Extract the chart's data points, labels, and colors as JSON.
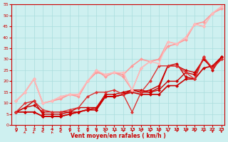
{
  "background_color": "#cef0f0",
  "grid_color": "#aadddd",
  "xlabel": "Vent moyen/en rafales ( km/h )",
  "xlim": [
    0,
    23
  ],
  "ylim": [
    0,
    55
  ],
  "yticks": [
    0,
    5,
    10,
    15,
    20,
    25,
    30,
    35,
    40,
    45,
    50,
    55
  ],
  "xticks": [
    0,
    1,
    2,
    3,
    4,
    5,
    6,
    7,
    8,
    9,
    10,
    11,
    12,
    13,
    14,
    15,
    16,
    17,
    18,
    19,
    20,
    21,
    22,
    23
  ],
  "series": [
    {
      "x": [
        0,
        1,
        2,
        3,
        4,
        5,
        6,
        7,
        8,
        9,
        10,
        11,
        12,
        13,
        14,
        15,
        16,
        17,
        18,
        19,
        20,
        21,
        22,
        23
      ],
      "y": [
        6,
        6,
        6,
        4,
        4,
        4,
        5,
        6,
        7,
        7,
        13,
        13,
        14,
        15,
        14,
        14,
        14,
        18,
        18,
        21,
        21,
        26,
        27,
        31
      ],
      "color": "#cc0000",
      "lw": 1.2,
      "marker": "D",
      "ms": 2.5
    },
    {
      "x": [
        0,
        1,
        2,
        3,
        4,
        5,
        6,
        7,
        8,
        9,
        10,
        11,
        12,
        13,
        14,
        15,
        16,
        17,
        18,
        19,
        20,
        21,
        22,
        23
      ],
      "y": [
        6,
        6,
        6,
        4,
        4,
        4,
        5,
        6,
        7,
        7,
        13,
        13,
        14,
        16,
        16,
        15,
        16,
        20,
        20,
        24,
        23,
        30,
        26,
        31
      ],
      "color": "#cc0000",
      "lw": 1.0,
      "marker": "D",
      "ms": 2.5
    },
    {
      "x": [
        0,
        1,
        2,
        3,
        4,
        5,
        6,
        7,
        8,
        9,
        10,
        11,
        12,
        13,
        14,
        15,
        16,
        17,
        18,
        19,
        20,
        21,
        22,
        23
      ],
      "y": [
        6,
        8,
        9,
        6,
        6,
        6,
        6,
        6,
        7,
        8,
        13,
        13,
        14,
        16,
        15,
        15,
        17,
        27,
        28,
        22,
        21,
        31,
        25,
        31
      ],
      "color": "#cc0000",
      "lw": 1.0,
      "marker": "D",
      "ms": 2.5
    },
    {
      "x": [
        0,
        1,
        2,
        3,
        4,
        5,
        6,
        7,
        8,
        9,
        10,
        11,
        12,
        13,
        14,
        15,
        16,
        17,
        18,
        19,
        20,
        21,
        22,
        23
      ],
      "y": [
        6,
        8,
        11,
        5,
        5,
        5,
        6,
        8,
        8,
        8,
        14,
        14,
        15,
        16,
        15,
        16,
        18,
        27,
        27,
        25,
        24,
        30,
        26,
        30
      ],
      "color": "#cc0000",
      "lw": 1.0,
      "marker": "D",
      "ms": 2.5
    },
    {
      "x": [
        0,
        1,
        2,
        3,
        4,
        5,
        6,
        7,
        8,
        9,
        10,
        11,
        12,
        13,
        14,
        15,
        16,
        17,
        18,
        19,
        20,
        21,
        22,
        23
      ],
      "y": [
        6,
        10,
        11,
        7,
        6,
        6,
        7,
        8,
        13,
        15,
        15,
        16,
        14,
        6,
        15,
        20,
        27,
        27,
        27,
        24,
        21,
        31,
        26,
        30
      ],
      "color": "#dd3333",
      "lw": 1.0,
      "marker": "D",
      "ms": 2.5
    },
    {
      "x": [
        0,
        1,
        2,
        3,
        4,
        5,
        6,
        7,
        8,
        9,
        10,
        11,
        12,
        13,
        14,
        15,
        16,
        17,
        18,
        19,
        20,
        21,
        22,
        23
      ],
      "y": [
        11,
        15,
        21,
        10,
        11,
        12,
        14,
        13,
        20,
        24,
        23,
        24,
        23,
        27,
        30,
        29,
        30,
        36,
        37,
        39,
        46,
        47,
        51,
        53
      ],
      "color": "#ff9999",
      "lw": 1.2,
      "marker": "D",
      "ms": 2.5
    },
    {
      "x": [
        0,
        1,
        2,
        3,
        4,
        5,
        6,
        7,
        8,
        9,
        10,
        11,
        12,
        13,
        14,
        15,
        16,
        17,
        18,
        19,
        20,
        21,
        22,
        23
      ],
      "y": [
        11,
        15,
        21,
        10,
        11,
        13,
        14,
        14,
        20,
        25,
        22,
        24,
        22,
        16,
        26,
        29,
        30,
        38,
        37,
        40,
        46,
        45,
        51,
        54
      ],
      "color": "#ff9999",
      "lw": 1.0,
      "marker": "D",
      "ms": 2.5
    },
    {
      "x": [
        0,
        1,
        2,
        3,
        4,
        5,
        6,
        7,
        8,
        9,
        10,
        11,
        12,
        13,
        14,
        15,
        16,
        17,
        18,
        19,
        20,
        21,
        22,
        23
      ],
      "y": [
        11,
        15,
        21,
        10,
        11,
        13,
        14,
        14,
        20,
        25,
        23,
        24,
        24,
        16,
        26,
        29,
        28,
        38,
        37,
        40,
        46,
        45,
        51,
        54
      ],
      "color": "#ffbbbb",
      "lw": 1.0,
      "marker": "D",
      "ms": 2.5
    }
  ],
  "wind_arrows": {
    "x": [
      0,
      1,
      2,
      3,
      4,
      5,
      6,
      7,
      8,
      9,
      10,
      11,
      12,
      13,
      14,
      15,
      16,
      17,
      18,
      19,
      20,
      21,
      22,
      23
    ],
    "angles": [
      225,
      45,
      45,
      270,
      315,
      270,
      225,
      225,
      225,
      225,
      270,
      225,
      225,
      225,
      225,
      225,
      225,
      225,
      225,
      225,
      225,
      225,
      180,
      180
    ]
  }
}
